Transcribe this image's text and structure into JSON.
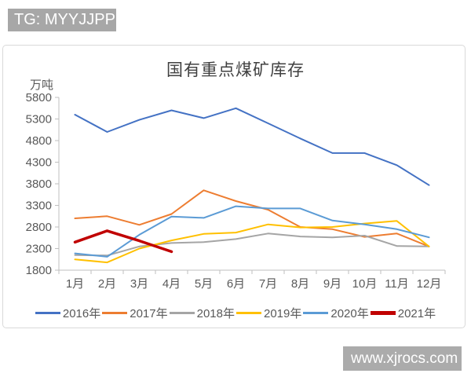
{
  "watermarks": {
    "tg": "TG: MYYJJPP",
    "site": "www.xjrocs.com"
  },
  "chart_data": {
    "type": "line",
    "title": "国有重点煤矿库存",
    "unit_label": "万吨",
    "categories": [
      "1月",
      "2月",
      "3月",
      "4月",
      "5月",
      "6月",
      "7月",
      "8月",
      "9月",
      "10月",
      "11月",
      "12月"
    ],
    "y_axis": {
      "min": 1800,
      "max": 5800,
      "step": 500
    },
    "grid": false,
    "legend_position": "bottom",
    "series": [
      {
        "name": "2016年",
        "color": "#4472C4",
        "thick": false,
        "values": [
          5400,
          5000,
          5280,
          5500,
          5320,
          5550,
          5200,
          4850,
          4510,
          4510,
          4230,
          3770
        ]
      },
      {
        "name": "2017年",
        "color": "#ED7D31",
        "thick": false,
        "values": [
          3000,
          3050,
          2850,
          3100,
          3650,
          3400,
          3200,
          2800,
          2750,
          2570,
          2650,
          2350
        ]
      },
      {
        "name": "2018年",
        "color": "#A5A5A5",
        "thick": false,
        "values": [
          2150,
          2140,
          2350,
          2430,
          2450,
          2520,
          2650,
          2580,
          2560,
          2600,
          2360,
          2350
        ]
      },
      {
        "name": "2019年",
        "color": "#FFC000",
        "thick": false,
        "values": [
          2050,
          1980,
          2300,
          2490,
          2640,
          2670,
          2860,
          2790,
          2800,
          2880,
          2940,
          2350
        ]
      },
      {
        "name": "2020年",
        "color": "#5B9BD5",
        "thick": false,
        "values": [
          2190,
          2110,
          2620,
          3040,
          3010,
          3280,
          3230,
          3230,
          2950,
          2860,
          2750,
          2560
        ]
      },
      {
        "name": "2021年",
        "color": "#C00000",
        "thick": true,
        "values": [
          2450,
          2710,
          2480,
          2230,
          null,
          null,
          null,
          null,
          null,
          null,
          null,
          null
        ]
      }
    ]
  }
}
